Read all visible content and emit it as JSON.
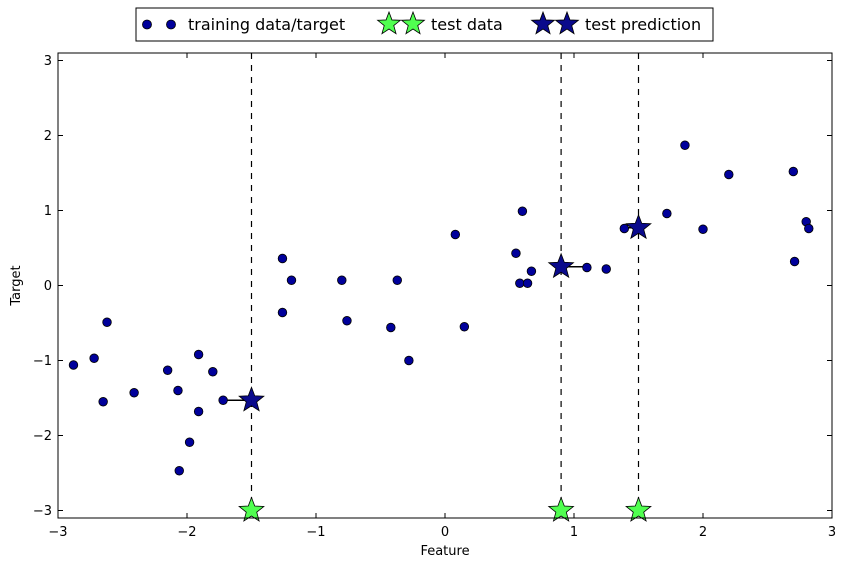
{
  "chart_data": {
    "type": "scatter",
    "xlabel": "Feature",
    "ylabel": "Target",
    "xlim": [
      -3,
      3
    ],
    "ylim": [
      -3.1,
      3.1
    ],
    "xticks": [
      -3,
      -2,
      -1,
      0,
      1,
      2,
      3
    ],
    "yticks": [
      -3,
      -2,
      -1,
      0,
      1,
      2,
      3
    ],
    "xtick_labels": [
      "−3",
      "−2",
      "−1",
      "0",
      "1",
      "2",
      "3"
    ],
    "ytick_labels": [
      "−3",
      "−2",
      "−1",
      "0",
      "1",
      "2",
      "3"
    ],
    "grid": false,
    "legend": {
      "placement": "top-center, above plot",
      "entries": [
        "training data/target",
        "test data",
        "test prediction"
      ]
    },
    "colors": {
      "training": "#00009b",
      "test_data": "#50ff50",
      "prediction": "#0a0a8c",
      "marker_edge": "#000000"
    },
    "series": [
      {
        "name": "training data/target",
        "marker": "circle",
        "points": [
          [
            -2.88,
            -1.06
          ],
          [
            -2.72,
            -0.97
          ],
          [
            -2.65,
            -1.55
          ],
          [
            -2.62,
            -0.49
          ],
          [
            -2.41,
            -1.43
          ],
          [
            -2.15,
            -1.13
          ],
          [
            -2.07,
            -1.4
          ],
          [
            -2.06,
            -2.47
          ],
          [
            -1.98,
            -2.09
          ],
          [
            -1.91,
            -0.92
          ],
          [
            -1.91,
            -1.68
          ],
          [
            -1.8,
            -1.15
          ],
          [
            -1.72,
            -1.53
          ],
          [
            -1.26,
            0.36
          ],
          [
            -1.26,
            -0.36
          ],
          [
            -1.19,
            0.07
          ],
          [
            -0.8,
            0.07
          ],
          [
            -0.76,
            -0.47
          ],
          [
            -0.42,
            -0.56
          ],
          [
            -0.37,
            0.07
          ],
          [
            -0.28,
            -1.0
          ],
          [
            0.08,
            0.68
          ],
          [
            0.15,
            -0.55
          ],
          [
            0.55,
            0.43
          ],
          [
            0.58,
            0.03
          ],
          [
            0.6,
            0.99
          ],
          [
            0.64,
            0.03
          ],
          [
            0.67,
            0.19
          ],
          [
            1.1,
            0.24
          ],
          [
            1.25,
            0.22
          ],
          [
            1.39,
            0.76
          ],
          [
            1.72,
            0.96
          ],
          [
            1.86,
            1.87
          ],
          [
            2.0,
            0.75
          ],
          [
            2.2,
            1.48
          ],
          [
            2.7,
            1.52
          ],
          [
            2.71,
            0.32
          ],
          [
            2.8,
            0.85
          ],
          [
            2.82,
            0.76
          ]
        ]
      },
      {
        "name": "test data",
        "marker": "star",
        "points": [
          [
            -1.5,
            -3.0
          ],
          [
            0.9,
            -3.0
          ],
          [
            1.5,
            -3.0
          ]
        ]
      },
      {
        "name": "test prediction",
        "marker": "star",
        "points": [
          [
            -1.5,
            -1.53
          ],
          [
            0.9,
            0.25
          ],
          [
            1.5,
            0.77
          ]
        ]
      }
    ],
    "vertical_lines": [
      -1.5,
      0.9,
      1.5
    ],
    "neighbor_segments": [
      {
        "from": [
          -1.5,
          -1.53
        ],
        "to": [
          -1.72,
          -1.53
        ]
      },
      {
        "from": [
          0.9,
          0.25
        ],
        "to": [
          1.1,
          0.25
        ]
      },
      {
        "from": [
          1.5,
          0.77
        ],
        "to": [
          1.39,
          0.77
        ]
      }
    ]
  }
}
